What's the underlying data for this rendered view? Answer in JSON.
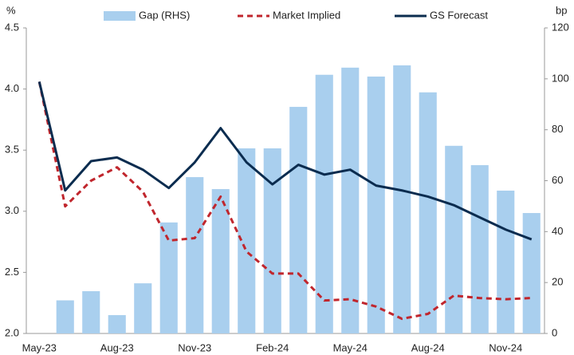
{
  "chart_data": {
    "type": "bar_line",
    "y_label": "%",
    "y2_label": "bp",
    "categories": [
      "May-23",
      null,
      null,
      "Aug-23",
      null,
      null,
      "Nov-23",
      null,
      null,
      "Feb-24",
      null,
      null,
      "May-24",
      null,
      null,
      "Aug-24",
      null,
      null,
      "Nov-24",
      null
    ],
    "series": [
      {
        "name": "Gap (RHS)",
        "type": "bar",
        "axis": "y2",
        "color": "#a9cfee",
        "values": [
          null,
          13,
          16.6,
          7.2,
          19.7,
          43.6,
          61.4,
          56.7,
          72.7,
          72.7,
          89,
          101.6,
          104.4,
          100.9,
          105.3,
          94.7,
          73.7,
          66.1,
          56.1,
          47.3
        ]
      },
      {
        "name": "Market Implied",
        "type": "line",
        "dashed": true,
        "color": "#c0262d",
        "values": [
          4.06,
          3.04,
          3.25,
          3.36,
          3.16,
          2.76,
          2.78,
          3.12,
          2.67,
          2.49,
          2.49,
          2.27,
          2.28,
          2.22,
          2.12,
          2.16,
          2.31,
          2.29,
          2.28,
          2.29
        ]
      },
      {
        "name": "GS Forecast",
        "type": "line",
        "color": "#0b2c4f",
        "values": [
          4.06,
          3.17,
          3.41,
          3.44,
          3.34,
          3.19,
          3.4,
          3.68,
          3.4,
          3.22,
          3.38,
          3.3,
          3.34,
          3.21,
          3.17,
          3.12,
          3.05,
          2.95,
          2.85,
          2.77
        ]
      }
    ],
    "ylim": [
      2,
      4.5
    ],
    "yticks": [
      {
        "value": 2,
        "label": "2.0"
      },
      {
        "value": 2.5,
        "label": "2.5"
      },
      {
        "value": 3,
        "label": "3.0"
      },
      {
        "value": 3.5,
        "label": "3.5"
      },
      {
        "value": 4,
        "label": "4.0"
      },
      {
        "value": 4.5,
        "label": "4.5"
      }
    ],
    "y2lim": [
      0,
      120
    ],
    "y2ticks": [
      0,
      20,
      40,
      60,
      80,
      100,
      120
    ],
    "legend": "top"
  }
}
